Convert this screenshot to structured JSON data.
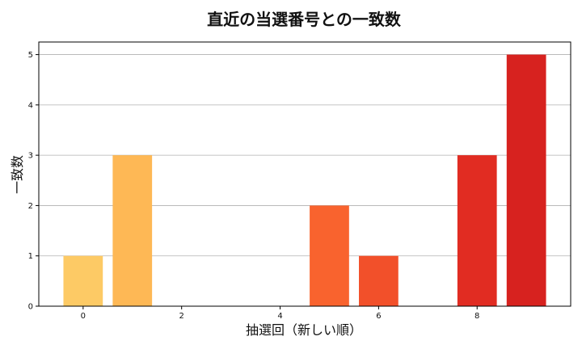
{
  "chart_data": {
    "type": "bar",
    "title": "直近の当選番号との一致数",
    "xlabel": "抽選回（新しい順）",
    "ylabel": "一致数",
    "x": [
      0,
      1,
      2,
      3,
      4,
      5,
      6,
      7,
      8,
      9
    ],
    "values": [
      1,
      3,
      0,
      0,
      0,
      2,
      1,
      0,
      3,
      5
    ],
    "xticks": [
      0,
      2,
      4,
      6,
      8
    ],
    "yticks": [
      0,
      1,
      2,
      3,
      4,
      5
    ],
    "xlim": [
      -0.9,
      9.9
    ],
    "ylim": [
      0,
      5.25
    ],
    "grid": "horizontal",
    "bar_colors": [
      "#fdca65",
      "#feb855",
      "#fea246",
      "#fd8e3c",
      "#fc7a35",
      "#f9632e",
      "#f2502a",
      "#ea3c25",
      "#e12c22",
      "#d7221f"
    ]
  }
}
